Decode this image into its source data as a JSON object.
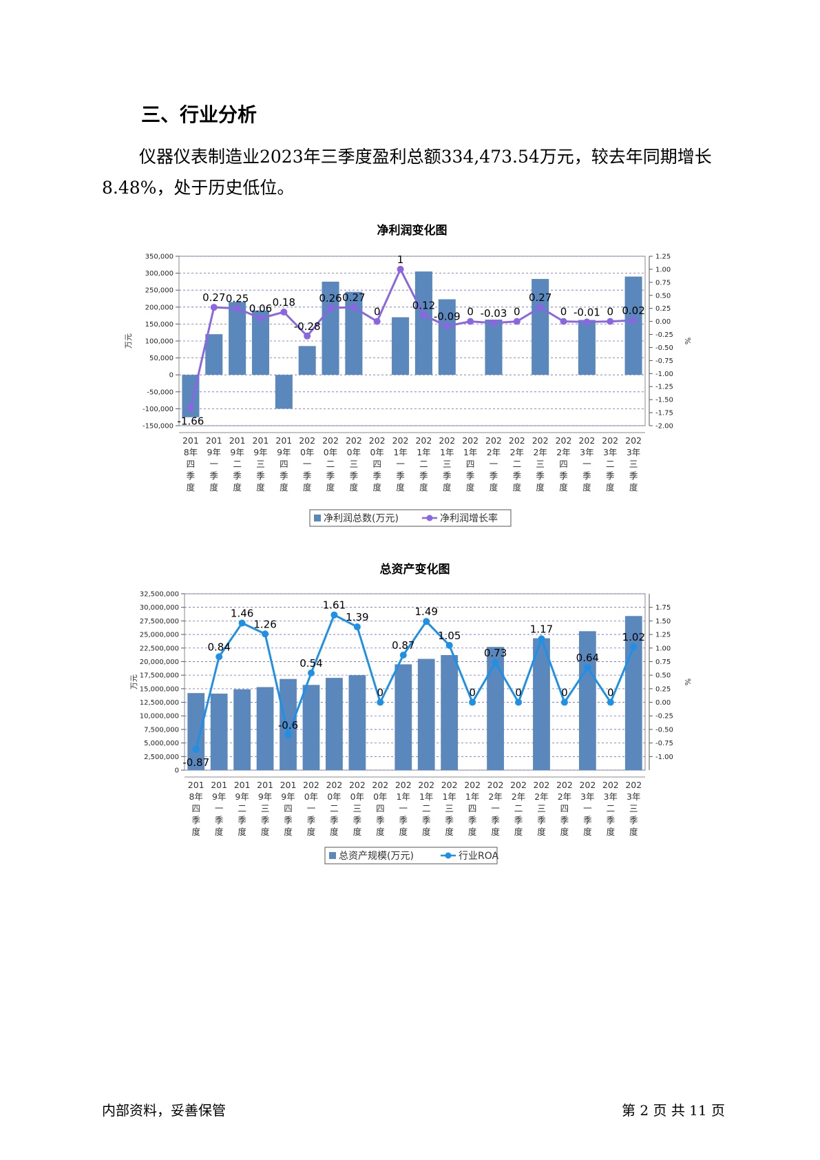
{
  "section_title": "三、行业分析",
  "paragraph": "仪器仪表制造业2023年三季度盈利总额334,473.54万元，较去年同期增长8.48%，处于历史低位。",
  "footer": {
    "left": "内部资料，妥善保管",
    "right": "第 2 页   共 11 页"
  },
  "chart_data": [
    {
      "type": "bar",
      "title": "净利润变化图",
      "categories": [
        "2018年四季度",
        "2019年一季度",
        "2019年二季度",
        "2019年三季度",
        "2019年四季度",
        "2020年一季度",
        "2020年二季度",
        "2020年三季度",
        "2020年四季度",
        "2021年一季度",
        "2021年二季度",
        "2021年三季度",
        "2021年四季度",
        "2022年一季度",
        "2022年二季度",
        "2022年三季度",
        "2022年四季度",
        "2023年一季度",
        "2023年二季度",
        "2023年三季度"
      ],
      "ylabel": "万元",
      "y2label": "%",
      "ylim": [
        -150000,
        350000
      ],
      "y2lim": [
        -2.0,
        1.25
      ],
      "yticks": [
        "-150,000",
        "-100,000",
        "-50,000",
        "0",
        "50,000",
        "100,000",
        "150,000",
        "200,000",
        "250,000",
        "300,000",
        "350,000"
      ],
      "y2ticks": [
        "-2.00",
        "-1.75",
        "-1.50",
        "-1.25",
        "-1.00",
        "-0.75",
        "-0.50",
        "-0.25",
        "0.00",
        "0.25",
        "0.50",
        "0.75",
        "1.00",
        "1.25"
      ],
      "grid": true,
      "legend_position": "bottom",
      "series": [
        {
          "name": "净利润总数(万元)",
          "type": "bar",
          "axis": "left",
          "color": "#5a87bc",
          "values": [
            -125000,
            120000,
            215000,
            190000,
            -100000,
            85000,
            275000,
            245000,
            null,
            170000,
            305000,
            223000,
            null,
            163000,
            null,
            283000,
            null,
            162000,
            null,
            290000
          ]
        },
        {
          "name": "净利润增长率",
          "type": "line",
          "axis": "right",
          "color": "#8a67e0",
          "values": [
            -1.66,
            0.27,
            0.25,
            0.06,
            0.18,
            -0.28,
            0.26,
            0.27,
            0,
            1,
            0.12,
            -0.09,
            0,
            -0.03,
            0,
            0.27,
            0,
            -0.01,
            0,
            0.02
          ],
          "labels": [
            "-1.66",
            "0.27",
            "0.25",
            "0.06",
            "0.18",
            "-0.28",
            "0.26",
            "0.27",
            "0",
            "1",
            "0.12",
            "-0.09",
            "0",
            "-0.03",
            "0",
            "0.27",
            "0",
            "-0.01",
            "0",
            "0.02"
          ]
        }
      ]
    },
    {
      "type": "bar",
      "title": "总资产变化图",
      "categories": [
        "2018年四季度",
        "2019年一季度",
        "2019年二季度",
        "2019年三季度",
        "2019年四季度",
        "2020年一季度",
        "2020年二季度",
        "2020年三季度",
        "2020年四季度",
        "2021年一季度",
        "2021年二季度",
        "2021年三季度",
        "2021年四季度",
        "2022年一季度",
        "2022年二季度",
        "2022年三季度",
        "2022年四季度",
        "2023年一季度",
        "2023年二季度",
        "2023年三季度"
      ],
      "ylabel": "万元",
      "y2label": "%",
      "ylim": [
        0,
        32500000
      ],
      "y2lim": [
        -1.25,
        2.0
      ],
      "yticks": [
        "0",
        "2,500,000",
        "5,000,000",
        "7,500,000",
        "10,000,000",
        "12,500,000",
        "15,000,000",
        "17,500,000",
        "20,000,000",
        "22,500,000",
        "25,000,000",
        "27,500,000",
        "30,000,000",
        "32,500,000"
      ],
      "y2ticks": [
        "-1.00",
        "-0.75",
        "-0.50",
        "-0.25",
        "0.00",
        "0.25",
        "0.50",
        "0.75",
        "1.00",
        "1.25",
        "1.50",
        "1.75"
      ],
      "grid": true,
      "legend_position": "bottom",
      "series": [
        {
          "name": "总资产规模(万元)",
          "type": "bar",
          "axis": "left",
          "color": "#5a87bc",
          "values": [
            14200000,
            14100000,
            14900000,
            15300000,
            16800000,
            15700000,
            17000000,
            17500000,
            null,
            19500000,
            20500000,
            21200000,
            null,
            22700000,
            null,
            24300000,
            null,
            25600000,
            null,
            28400000
          ]
        },
        {
          "name": "行业ROA",
          "type": "line",
          "axis": "right",
          "color": "#1e90e6",
          "values": [
            -0.87,
            0.84,
            1.46,
            1.26,
            -0.6,
            0.54,
            1.61,
            1.39,
            0,
            0.87,
            1.49,
            1.05,
            0,
            0.73,
            0,
            1.17,
            0,
            0.64,
            0,
            1.02
          ],
          "labels": [
            "-0.87",
            "0.84",
            "1.46",
            "1.26",
            "-0.6",
            "0.54",
            "1.61",
            "1.39",
            "0",
            "0.87",
            "1.49",
            "1.05",
            "0",
            "0.73",
            "0",
            "1.17",
            "0",
            "0.64",
            "0",
            "1.02"
          ]
        }
      ]
    }
  ]
}
